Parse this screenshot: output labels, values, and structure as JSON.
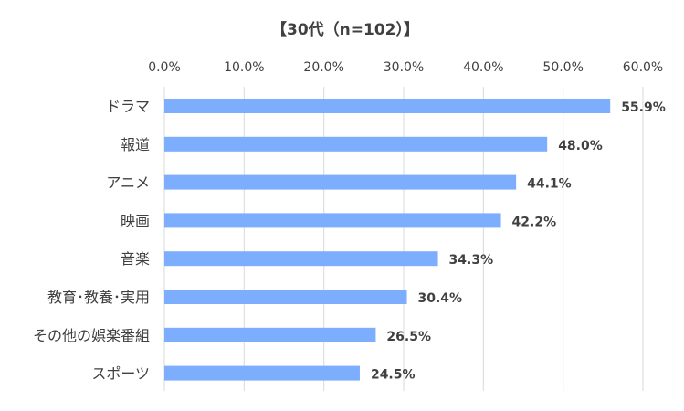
{
  "chart_data": {
    "type": "bar",
    "orientation": "horizontal",
    "title": "【30代（n=102）】",
    "categories": [
      "ドラマ",
      "報道",
      "アニメ",
      "映画",
      "音楽",
      "教育･教養･実用",
      "その他の娯楽番組",
      "スポーツ"
    ],
    "values": [
      55.9,
      48.0,
      44.1,
      42.2,
      34.3,
      30.4,
      26.5,
      24.5
    ],
    "value_labels": [
      "55.9%",
      "48.0%",
      "44.1%",
      "42.2%",
      "34.3%",
      "30.4%",
      "26.5%",
      "24.5%"
    ],
    "xlim": [
      0,
      60
    ],
    "ticks": [
      0,
      10,
      20,
      30,
      40,
      50,
      60
    ],
    "tick_labels": [
      "0.0%",
      "10.0%",
      "20.0%",
      "30.0%",
      "40.0%",
      "50.0%",
      "60.0%"
    ],
    "grid": true,
    "legend": "none",
    "bar_color": "#7daefe",
    "grid_color": "#d9d9d9",
    "text_color": "#404040"
  }
}
